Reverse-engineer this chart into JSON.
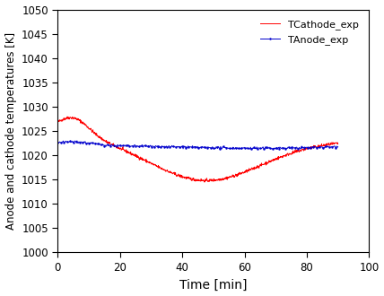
{
  "title": "",
  "xlabel": "Time [min]",
  "ylabel": "Anode and cathode temperatures [K]",
  "xlim": [
    0,
    100
  ],
  "ylim": [
    1000,
    1050
  ],
  "yticks": [
    1000,
    1005,
    1010,
    1015,
    1020,
    1025,
    1030,
    1035,
    1040,
    1045,
    1050
  ],
  "xticks": [
    0,
    20,
    40,
    60,
    80,
    100
  ],
  "cathode_color": "#ff0000",
  "anode_color": "#0000cc",
  "cathode_label": "TCathode_exp",
  "anode_label": "TAnode_exp",
  "background_color": "#ffffff"
}
